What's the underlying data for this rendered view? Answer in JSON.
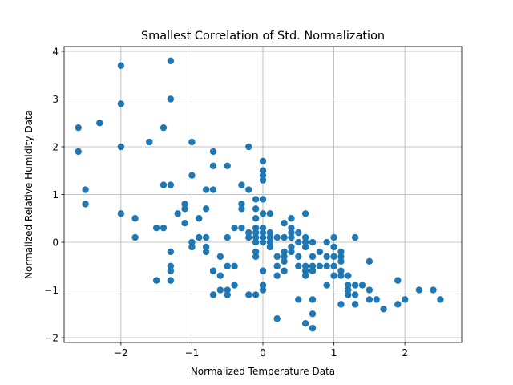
{
  "chart_data": {
    "type": "scatter",
    "title": "Smallest Correlation of Std. Normalization",
    "xlabel": "Normalized Temperature Data",
    "ylabel": "Normalized Relative Humidity Data",
    "xlim": [
      -2.8,
      2.8
    ],
    "ylim": [
      -2.1,
      4.1
    ],
    "xticks": [
      -2,
      -1,
      0,
      1,
      2
    ],
    "yticks": [
      -2,
      -1,
      0,
      1,
      2,
      3,
      4
    ],
    "xtick_labels": [
      "−2",
      "−1",
      "0",
      "1",
      "2"
    ],
    "ytick_labels": [
      "−2",
      "−1",
      "0",
      "1",
      "2",
      "3",
      "4"
    ],
    "grid": true,
    "marker_color": "#1f77b4",
    "points": [
      [
        -2.6,
        2.4
      ],
      [
        -2.6,
        1.9
      ],
      [
        -2.5,
        1.1
      ],
      [
        -2.5,
        0.8
      ],
      [
        -2.3,
        2.5
      ],
      [
        -2.0,
        3.7
      ],
      [
        -2.0,
        2.9
      ],
      [
        -2.0,
        2.0
      ],
      [
        -2.0,
        0.6
      ],
      [
        -1.8,
        0.5
      ],
      [
        -1.8,
        0.1
      ],
      [
        -1.6,
        2.1
      ],
      [
        -1.5,
        0.3
      ],
      [
        -1.5,
        -0.8
      ],
      [
        -1.4,
        2.4
      ],
      [
        -1.4,
        1.2
      ],
      [
        -1.4,
        0.3
      ],
      [
        -1.3,
        3.8
      ],
      [
        -1.3,
        3.0
      ],
      [
        -1.3,
        1.2
      ],
      [
        -1.3,
        -0.2
      ],
      [
        -1.3,
        -0.5
      ],
      [
        -1.3,
        -0.6
      ],
      [
        -1.3,
        -0.8
      ],
      [
        -1.2,
        0.6
      ],
      [
        -1.1,
        0.8
      ],
      [
        -1.1,
        0.7
      ],
      [
        -1.1,
        0.4
      ],
      [
        -1.0,
        2.1
      ],
      [
        -1.0,
        1.4
      ],
      [
        -1.0,
        0.0
      ],
      [
        -1.0,
        -0.1
      ],
      [
        -0.9,
        0.5
      ],
      [
        -0.9,
        0.1
      ],
      [
        -0.8,
        1.1
      ],
      [
        -0.8,
        0.7
      ],
      [
        -0.8,
        0.1
      ],
      [
        -0.8,
        -0.1
      ],
      [
        -0.8,
        -0.2
      ],
      [
        -0.7,
        1.9
      ],
      [
        -0.7,
        1.6
      ],
      [
        -0.7,
        1.1
      ],
      [
        -0.7,
        -0.6
      ],
      [
        -0.7,
        -1.1
      ],
      [
        -0.6,
        -0.3
      ],
      [
        -0.6,
        -0.7
      ],
      [
        -0.6,
        -1.0
      ],
      [
        -0.5,
        1.6
      ],
      [
        -0.5,
        0.1
      ],
      [
        -0.5,
        -0.5
      ],
      [
        -0.5,
        -1.0
      ],
      [
        -0.5,
        -1.1
      ],
      [
        -0.4,
        0.3
      ],
      [
        -0.4,
        -0.5
      ],
      [
        -0.4,
        -0.9
      ],
      [
        -0.3,
        1.2
      ],
      [
        -0.3,
        0.8
      ],
      [
        -0.3,
        0.7
      ],
      [
        -0.3,
        0.3
      ],
      [
        -0.2,
        2.0
      ],
      [
        -0.2,
        1.1
      ],
      [
        -0.2,
        0.2
      ],
      [
        -0.2,
        0.1
      ],
      [
        -0.2,
        -1.1
      ],
      [
        -0.1,
        0.9
      ],
      [
        -0.1,
        0.7
      ],
      [
        -0.1,
        0.5
      ],
      [
        -0.1,
        0.3
      ],
      [
        -0.1,
        0.2
      ],
      [
        -0.1,
        0.1
      ],
      [
        -0.1,
        0.0
      ],
      [
        -0.1,
        -0.2
      ],
      [
        -0.1,
        -0.3
      ],
      [
        -0.1,
        -1.1
      ],
      [
        0.0,
        1.7
      ],
      [
        0.0,
        1.5
      ],
      [
        0.0,
        1.4
      ],
      [
        0.0,
        1.3
      ],
      [
        0.0,
        0.9
      ],
      [
        0.0,
        0.6
      ],
      [
        0.0,
        0.3
      ],
      [
        0.0,
        0.2
      ],
      [
        0.0,
        0.1
      ],
      [
        0.0,
        0.0
      ],
      [
        0.0,
        -0.6
      ],
      [
        0.0,
        -0.9
      ],
      [
        0.0,
        -1.0
      ],
      [
        0.1,
        0.6
      ],
      [
        0.1,
        0.2
      ],
      [
        0.1,
        0.1
      ],
      [
        0.1,
        0.0
      ],
      [
        0.1,
        -0.1
      ],
      [
        0.2,
        0.1
      ],
      [
        0.2,
        -0.3
      ],
      [
        0.2,
        -0.5
      ],
      [
        0.2,
        -0.7
      ],
      [
        0.2,
        -1.6
      ],
      [
        0.3,
        0.4
      ],
      [
        0.3,
        0.1
      ],
      [
        0.3,
        -0.2
      ],
      [
        0.3,
        -0.3
      ],
      [
        0.3,
        -0.4
      ],
      [
        0.3,
        -0.6
      ],
      [
        0.4,
        0.5
      ],
      [
        0.4,
        0.3
      ],
      [
        0.4,
        0.2
      ],
      [
        0.4,
        0.1
      ],
      [
        0.4,
        -0.1
      ],
      [
        0.4,
        -0.2
      ],
      [
        0.5,
        0.2
      ],
      [
        0.5,
        0.0
      ],
      [
        0.5,
        -0.3
      ],
      [
        0.5,
        -0.5
      ],
      [
        0.5,
        -1.2
      ],
      [
        0.6,
        0.6
      ],
      [
        0.6,
        0.1
      ],
      [
        0.6,
        0.0
      ],
      [
        0.6,
        -0.1
      ],
      [
        0.6,
        -0.5
      ],
      [
        0.6,
        -0.6
      ],
      [
        0.6,
        -0.7
      ],
      [
        0.6,
        -1.7
      ],
      [
        0.7,
        0.0
      ],
      [
        0.7,
        -0.3
      ],
      [
        0.7,
        -0.5
      ],
      [
        0.7,
        -0.6
      ],
      [
        0.7,
        -1.2
      ],
      [
        0.7,
        -1.5
      ],
      [
        0.7,
        -1.8
      ],
      [
        0.8,
        -0.2
      ],
      [
        0.8,
        -0.5
      ],
      [
        0.9,
        0.0
      ],
      [
        0.9,
        -0.3
      ],
      [
        0.9,
        -0.5
      ],
      [
        0.9,
        -0.9
      ],
      [
        1.0,
        0.1
      ],
      [
        1.0,
        -0.1
      ],
      [
        1.0,
        -0.3
      ],
      [
        1.0,
        -0.5
      ],
      [
        1.0,
        -0.7
      ],
      [
        1.1,
        -0.2
      ],
      [
        1.1,
        -0.3
      ],
      [
        1.1,
        -0.4
      ],
      [
        1.1,
        -0.6
      ],
      [
        1.1,
        -0.7
      ],
      [
        1.1,
        -1.3
      ],
      [
        1.2,
        -0.7
      ],
      [
        1.2,
        -0.9
      ],
      [
        1.2,
        -1.0
      ],
      [
        1.2,
        -1.1
      ],
      [
        1.3,
        0.1
      ],
      [
        1.3,
        -0.9
      ],
      [
        1.3,
        -1.1
      ],
      [
        1.3,
        -1.3
      ],
      [
        1.4,
        -0.9
      ],
      [
        1.5,
        -0.4
      ],
      [
        1.5,
        -1.0
      ],
      [
        1.5,
        -1.2
      ],
      [
        1.6,
        -1.2
      ],
      [
        1.7,
        -1.4
      ],
      [
        1.9,
        -0.8
      ],
      [
        1.9,
        -1.3
      ],
      [
        2.0,
        -1.2
      ],
      [
        2.2,
        -1.0
      ],
      [
        2.4,
        -1.0
      ],
      [
        2.5,
        -1.2
      ]
    ]
  }
}
